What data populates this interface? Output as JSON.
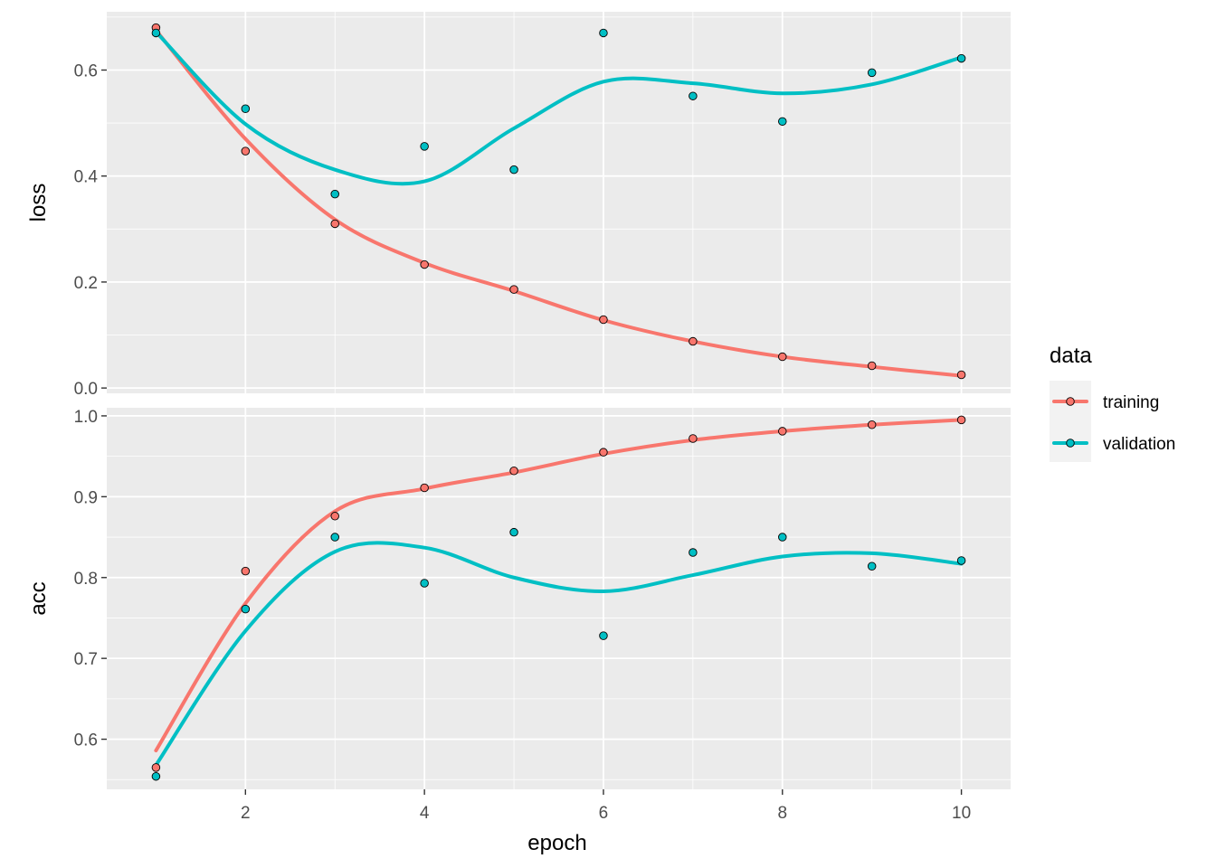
{
  "chart_data": {
    "type": "scatter",
    "xlabel": "epoch",
    "x_ticks": [
      2,
      4,
      6,
      8,
      10
    ],
    "xlim": [
      0.45,
      10.55
    ],
    "grid": true,
    "legend": {
      "title": "data",
      "position": "right",
      "entries": [
        "training",
        "validation"
      ]
    },
    "colors": {
      "training": "#F8766D",
      "validation": "#00BFC4",
      "panel_bg": "#EBEBEB",
      "grid": "#FFFFFF",
      "point_outline": "#000000"
    },
    "panels": [
      {
        "metric": "loss",
        "ylabel": "loss",
        "ylim": [
          -0.01,
          0.71
        ],
        "y_ticks": [
          "0.0",
          "0.2",
          "0.4",
          "0.6"
        ],
        "y_tick_values": [
          0.0,
          0.2,
          0.4,
          0.6
        ],
        "series": [
          {
            "name": "training",
            "x": [
              1,
              2,
              3,
              4,
              5,
              6,
              7,
              8,
              9,
              10
            ],
            "values": [
              0.68,
              0.447,
              0.31,
              0.233,
              0.186,
              0.129,
              0.088,
              0.059,
              0.042,
              0.025
            ],
            "smooth": [
              0.675,
              0.47,
              0.318,
              0.236,
              0.183,
              0.128,
              0.088,
              0.059,
              0.04,
              0.023
            ]
          },
          {
            "name": "validation",
            "x": [
              1,
              2,
              3,
              4,
              5,
              6,
              7,
              8,
              9,
              10
            ],
            "values": [
              0.67,
              0.527,
              0.366,
              0.456,
              0.412,
              0.67,
              0.551,
              0.503,
              0.595,
              0.622
            ],
            "smooth": [
              0.672,
              0.498,
              0.412,
              0.39,
              0.49,
              0.578,
              0.575,
              0.556,
              0.573,
              0.624
            ]
          }
        ]
      },
      {
        "metric": "acc",
        "ylabel": "acc",
        "ylim": [
          0.538,
          1.01
        ],
        "y_ticks": [
          "0.6",
          "0.7",
          "0.8",
          "0.9",
          "1.0"
        ],
        "y_tick_values": [
          0.6,
          0.7,
          0.8,
          0.9,
          1.0
        ],
        "series": [
          {
            "name": "training",
            "x": [
              1,
              2,
              3,
              4,
              5,
              6,
              7,
              8,
              9,
              10
            ],
            "values": [
              0.565,
              0.808,
              0.876,
              0.911,
              0.932,
              0.955,
              0.972,
              0.981,
              0.989,
              0.995
            ],
            "smooth": [
              0.586,
              0.768,
              0.882,
              0.91,
              0.93,
              0.953,
              0.97,
              0.981,
              0.989,
              0.995
            ]
          },
          {
            "name": "validation",
            "x": [
              1,
              2,
              3,
              4,
              5,
              6,
              7,
              8,
              9,
              10
            ],
            "values": [
              0.554,
              0.761,
              0.85,
              0.793,
              0.856,
              0.728,
              0.831,
              0.85,
              0.814,
              0.821
            ],
            "smooth": [
              0.568,
              0.734,
              0.832,
              0.837,
              0.8,
              0.783,
              0.803,
              0.826,
              0.83,
              0.817
            ]
          }
        ]
      }
    ]
  }
}
